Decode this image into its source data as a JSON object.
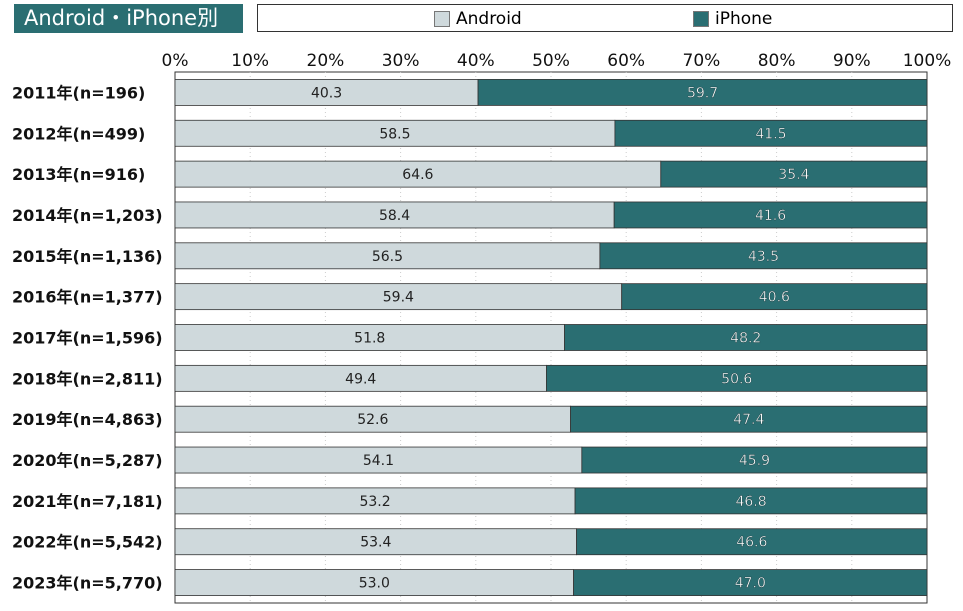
{
  "chart_data": {
    "type": "bar",
    "orientation": "horizontal",
    "stacked": true,
    "title": "Android・iPhone別",
    "categories": [
      "2011年(n=196)",
      "2012年(n=499)",
      "2013年(n=916)",
      "2014年(n=1,203)",
      "2015年(n=1,136)",
      "2016年(n=1,377)",
      "2017年(n=1,596)",
      "2018年(n=2,811)",
      "2019年(n=4,863)",
      "2020年(n=5,287)",
      "2021年(n=7,181)",
      "2022年(n=5,542)",
      "2023年(n=5,770)"
    ],
    "series": [
      {
        "name": "Android",
        "color": "#cfd9dc",
        "values": [
          40.3,
          58.5,
          64.6,
          58.4,
          56.5,
          59.4,
          51.8,
          49.4,
          52.6,
          54.1,
          53.2,
          53.4,
          53.0
        ]
      },
      {
        "name": "iPhone",
        "color": "#2a6e72",
        "values": [
          59.7,
          41.5,
          35.4,
          41.6,
          43.5,
          40.6,
          48.2,
          50.6,
          47.4,
          45.9,
          46.8,
          46.6,
          47.0
        ]
      }
    ],
    "xlim": [
      0,
      100
    ],
    "xticks": [
      "0%",
      "10%",
      "20%",
      "30%",
      "40%",
      "50%",
      "60%",
      "70%",
      "80%",
      "90%",
      "100%"
    ],
    "legend_position": "top",
    "grid": true
  }
}
